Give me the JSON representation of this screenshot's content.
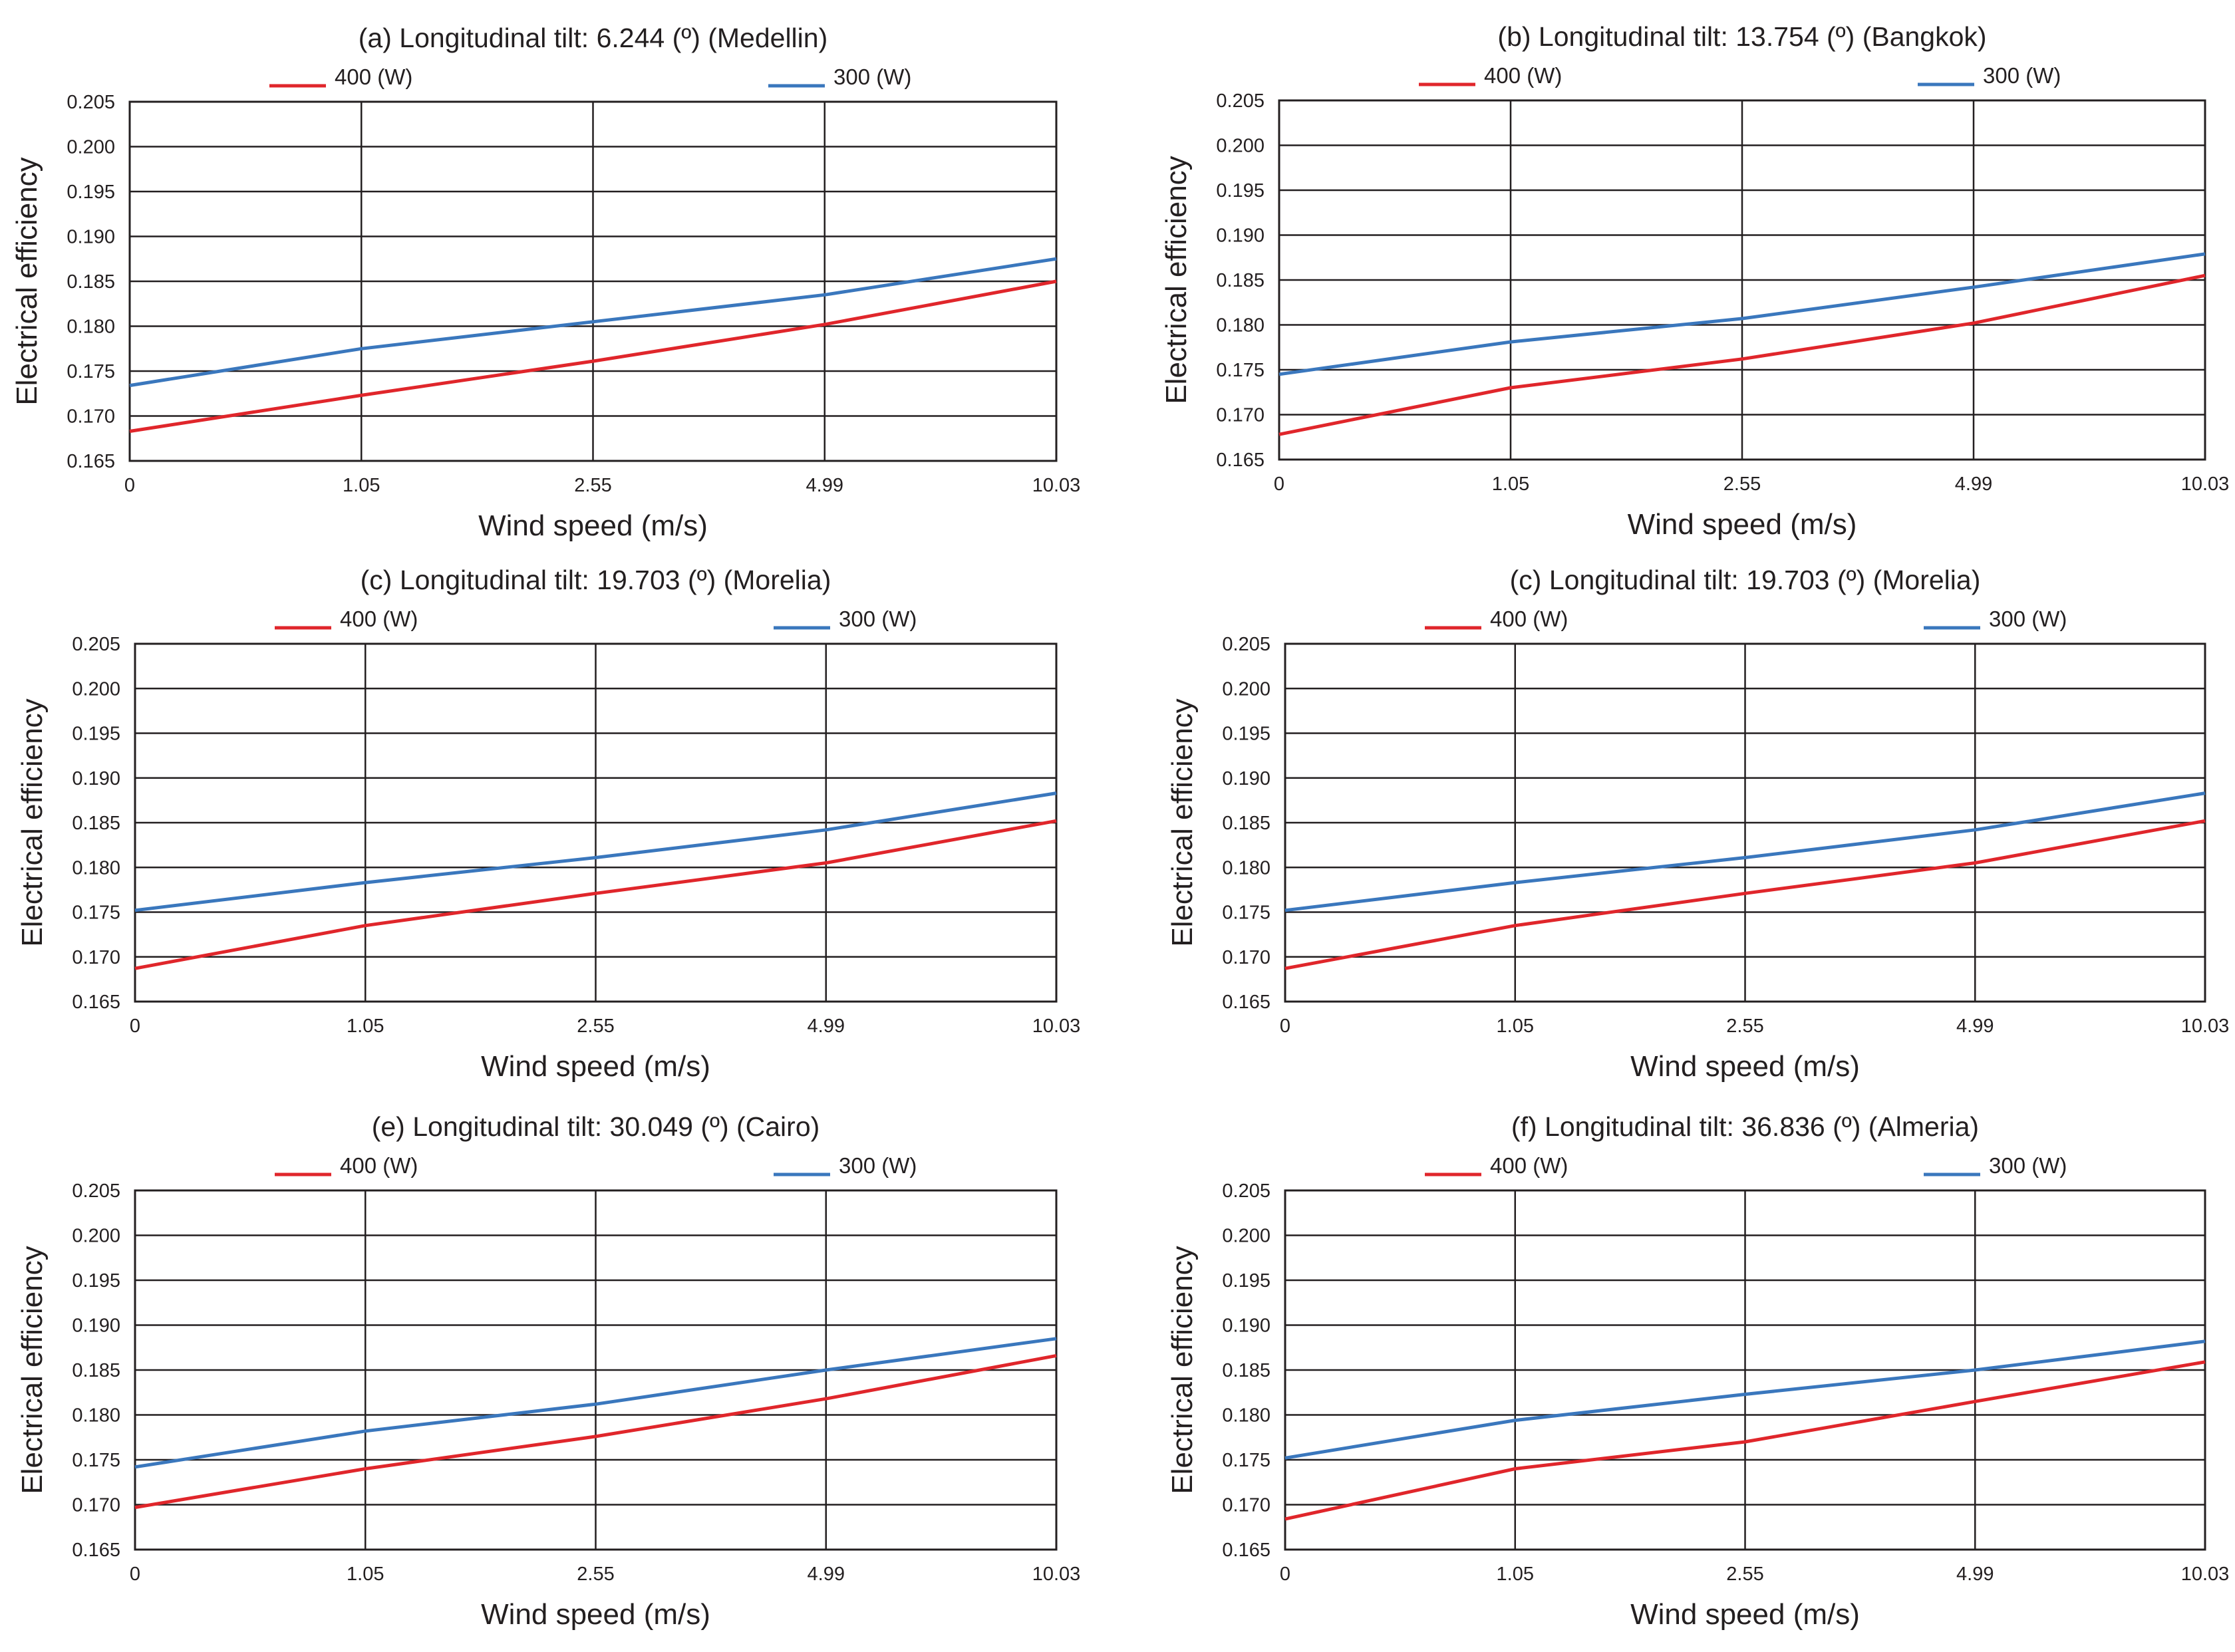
{
  "chart_data": [
    {
      "type": "line",
      "title": "(a) Longitudinal tilt: 6.244 (º) (Medellin)",
      "xlabel": "Wind speed (m/s)",
      "ylabel": "Electrical efficiency",
      "categories": [
        "0",
        "1.05",
        "2.55",
        "4.99",
        "10.03"
      ],
      "yticks": [
        "0.165",
        "0.170",
        "0.175",
        "0.180",
        "0.185",
        "0.190",
        "0.195",
        "0.200",
        "0.205"
      ],
      "ylim": [
        0.165,
        0.205
      ],
      "grid": true,
      "legend": "top",
      "series": [
        {
          "name": "400 (W)",
          "color": "#e0262b",
          "values": [
            0.1683,
            0.1723,
            0.1761,
            0.1802,
            0.185
          ]
        },
        {
          "name": "300 (W)",
          "color": "#3a77bd",
          "values": [
            0.1734,
            0.1775,
            0.1805,
            0.1835,
            0.1875
          ]
        }
      ]
    },
    {
      "type": "line",
      "title": "(b) Longitudinal tilt: 13.754 (º) (Bangkok)",
      "xlabel": "Wind speed (m/s)",
      "ylabel": "Electrical efficiency",
      "categories": [
        "0",
        "1.05",
        "2.55",
        "4.99",
        "10.03"
      ],
      "yticks": [
        "0.165",
        "0.170",
        "0.175",
        "0.180",
        "0.185",
        "0.190",
        "0.195",
        "0.200",
        "0.205"
      ],
      "ylim": [
        0.165,
        0.205
      ],
      "grid": true,
      "legend": "top",
      "series": [
        {
          "name": "400 (W)",
          "color": "#e0262b",
          "values": [
            0.1678,
            0.173,
            0.1762,
            0.1802,
            0.1855
          ]
        },
        {
          "name": "300 (W)",
          "color": "#3a77bd",
          "values": [
            0.1745,
            0.1781,
            0.1807,
            0.1842,
            0.1879
          ]
        }
      ]
    },
    {
      "type": "line",
      "title": "(c) Longitudinal tilt: 19.703 (º) (Morelia)",
      "xlabel": "Wind speed (m/s)",
      "ylabel": "Electrical efficiency",
      "categories": [
        "0",
        "1.05",
        "2.55",
        "4.99",
        "10.03"
      ],
      "yticks": [
        "0.165",
        "0.170",
        "0.175",
        "0.180",
        "0.185",
        "0.190",
        "0.195",
        "0.200",
        "0.205"
      ],
      "ylim": [
        0.165,
        0.205
      ],
      "grid": true,
      "legend": "top",
      "series": [
        {
          "name": "400 (W)",
          "color": "#e0262b",
          "values": [
            0.1687,
            0.1735,
            0.1771,
            0.1805,
            0.1852
          ]
        },
        {
          "name": "300 (W)",
          "color": "#3a77bd",
          "values": [
            0.1752,
            0.1783,
            0.1811,
            0.1842,
            0.1883
          ]
        }
      ]
    },
    {
      "type": "line",
      "title": "(c) Longitudinal tilt: 19.703 (º) (Morelia)",
      "xlabel": "Wind speed (m/s)",
      "ylabel": "Electrical efficiency",
      "categories": [
        "0",
        "1.05",
        "2.55",
        "4.99",
        "10.03"
      ],
      "yticks": [
        "0.165",
        "0.170",
        "0.175",
        "0.180",
        "0.185",
        "0.190",
        "0.195",
        "0.200",
        "0.205"
      ],
      "ylim": [
        0.165,
        0.205
      ],
      "grid": true,
      "legend": "top",
      "series": [
        {
          "name": "400 (W)",
          "color": "#e0262b",
          "values": [
            0.1687,
            0.1735,
            0.1771,
            0.1805,
            0.1852
          ]
        },
        {
          "name": "300 (W)",
          "color": "#3a77bd",
          "values": [
            0.1752,
            0.1783,
            0.1811,
            0.1842,
            0.1883
          ]
        }
      ]
    },
    {
      "type": "line",
      "title": "(e) Longitudinal tilt: 30.049 (º) (Cairo)",
      "xlabel": "Wind speed (m/s)",
      "ylabel": "Electrical efficiency",
      "categories": [
        "0",
        "1.05",
        "2.55",
        "4.99",
        "10.03"
      ],
      "yticks": [
        "0.165",
        "0.170",
        "0.175",
        "0.180",
        "0.185",
        "0.190",
        "0.195",
        "0.200",
        "0.205"
      ],
      "ylim": [
        0.165,
        0.205
      ],
      "grid": true,
      "legend": "top",
      "series": [
        {
          "name": "400 (W)",
          "color": "#e0262b",
          "values": [
            0.1697,
            0.174,
            0.1776,
            0.1818,
            0.1866
          ]
        },
        {
          "name": "300 (W)",
          "color": "#3a77bd",
          "values": [
            0.1742,
            0.1782,
            0.1812,
            0.185,
            0.1885
          ]
        }
      ]
    },
    {
      "type": "line",
      "title": "(f) Longitudinal tilt: 36.836 (º) (Almeria)",
      "xlabel": "Wind speed (m/s)",
      "ylabel": "Electrical efficiency",
      "categories": [
        "0",
        "1.05",
        "2.55",
        "4.99",
        "10.03"
      ],
      "yticks": [
        "0.165",
        "0.170",
        "0.175",
        "0.180",
        "0.185",
        "0.190",
        "0.195",
        "0.200",
        "0.205"
      ],
      "ylim": [
        0.165,
        0.205
      ],
      "grid": true,
      "legend": "top",
      "series": [
        {
          "name": "400 (W)",
          "color": "#e0262b",
          "values": [
            0.1684,
            0.174,
            0.177,
            0.1815,
            0.1859
          ]
        },
        {
          "name": "300 (W)",
          "color": "#3a77bd",
          "values": [
            0.1752,
            0.1794,
            0.1823,
            0.185,
            0.1882
          ]
        }
      ]
    }
  ]
}
